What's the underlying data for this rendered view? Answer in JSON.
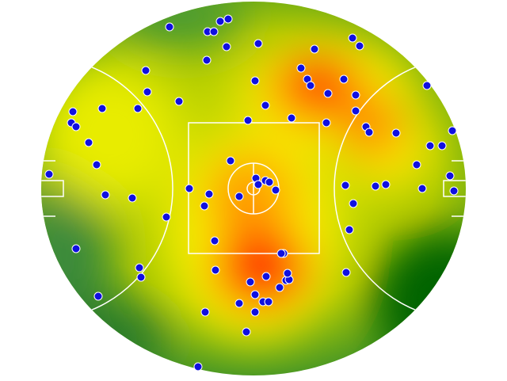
{
  "chart_data": {
    "type": "scatter",
    "color": "#1010e0",
    "xlim": [
      0,
      536
    ],
    "ylim": [
      0,
      472
    ],
    "x": [
      162,
      210,
      218,
      226,
      236,
      274,
      234,
      209,
      132,
      134,
      174,
      122,
      77,
      40,
      38,
      44,
      60,
      70,
      10,
      81,
      115,
      187,
      158,
      44,
      124,
      126,
      72,
      198,
      207,
      259,
      250,
      270,
      280,
      287,
      270,
      264,
      284,
      301,
      309,
      313,
      311,
      306,
      303,
      220,
      219,
      206,
      212,
      250,
      239,
      271,
      274,
      283,
      288,
      296,
      261,
      283,
      270,
      316,
      328,
      336,
      340,
      345,
      362,
      382,
      393,
      402,
      397,
      397,
      360,
      410,
      414,
      448,
      487,
      519,
      491,
      506,
      474,
      516,
      521,
      481,
      435,
      422,
      384,
      394,
      389,
      385
    ],
    "y": [
      32,
      38,
      38,
      25,
      22,
      53,
      57,
      74,
      87,
      114,
      126,
      135,
      135,
      139,
      153,
      158,
      178,
      206,
      218,
      244,
      248,
      236,
      272,
      312,
      336,
      348,
      372,
      461,
      392,
      417,
      381,
      392,
      379,
      379,
      370,
      354,
      347,
      361,
      352,
      351,
      343,
      318,
      318,
      339,
      302,
      258,
      243,
      246,
      201,
      223,
      231,
      226,
      228,
      238,
      150,
      131,
      100,
      147,
      84,
      98,
      106,
      60,
      116,
      98,
      46,
      56,
      118,
      138,
      153,
      158,
      165,
      166,
      106,
      163,
      182,
      182,
      206,
      220,
      239,
      236,
      231,
      233,
      232,
      255,
      288,
      342
    ]
  }
}
